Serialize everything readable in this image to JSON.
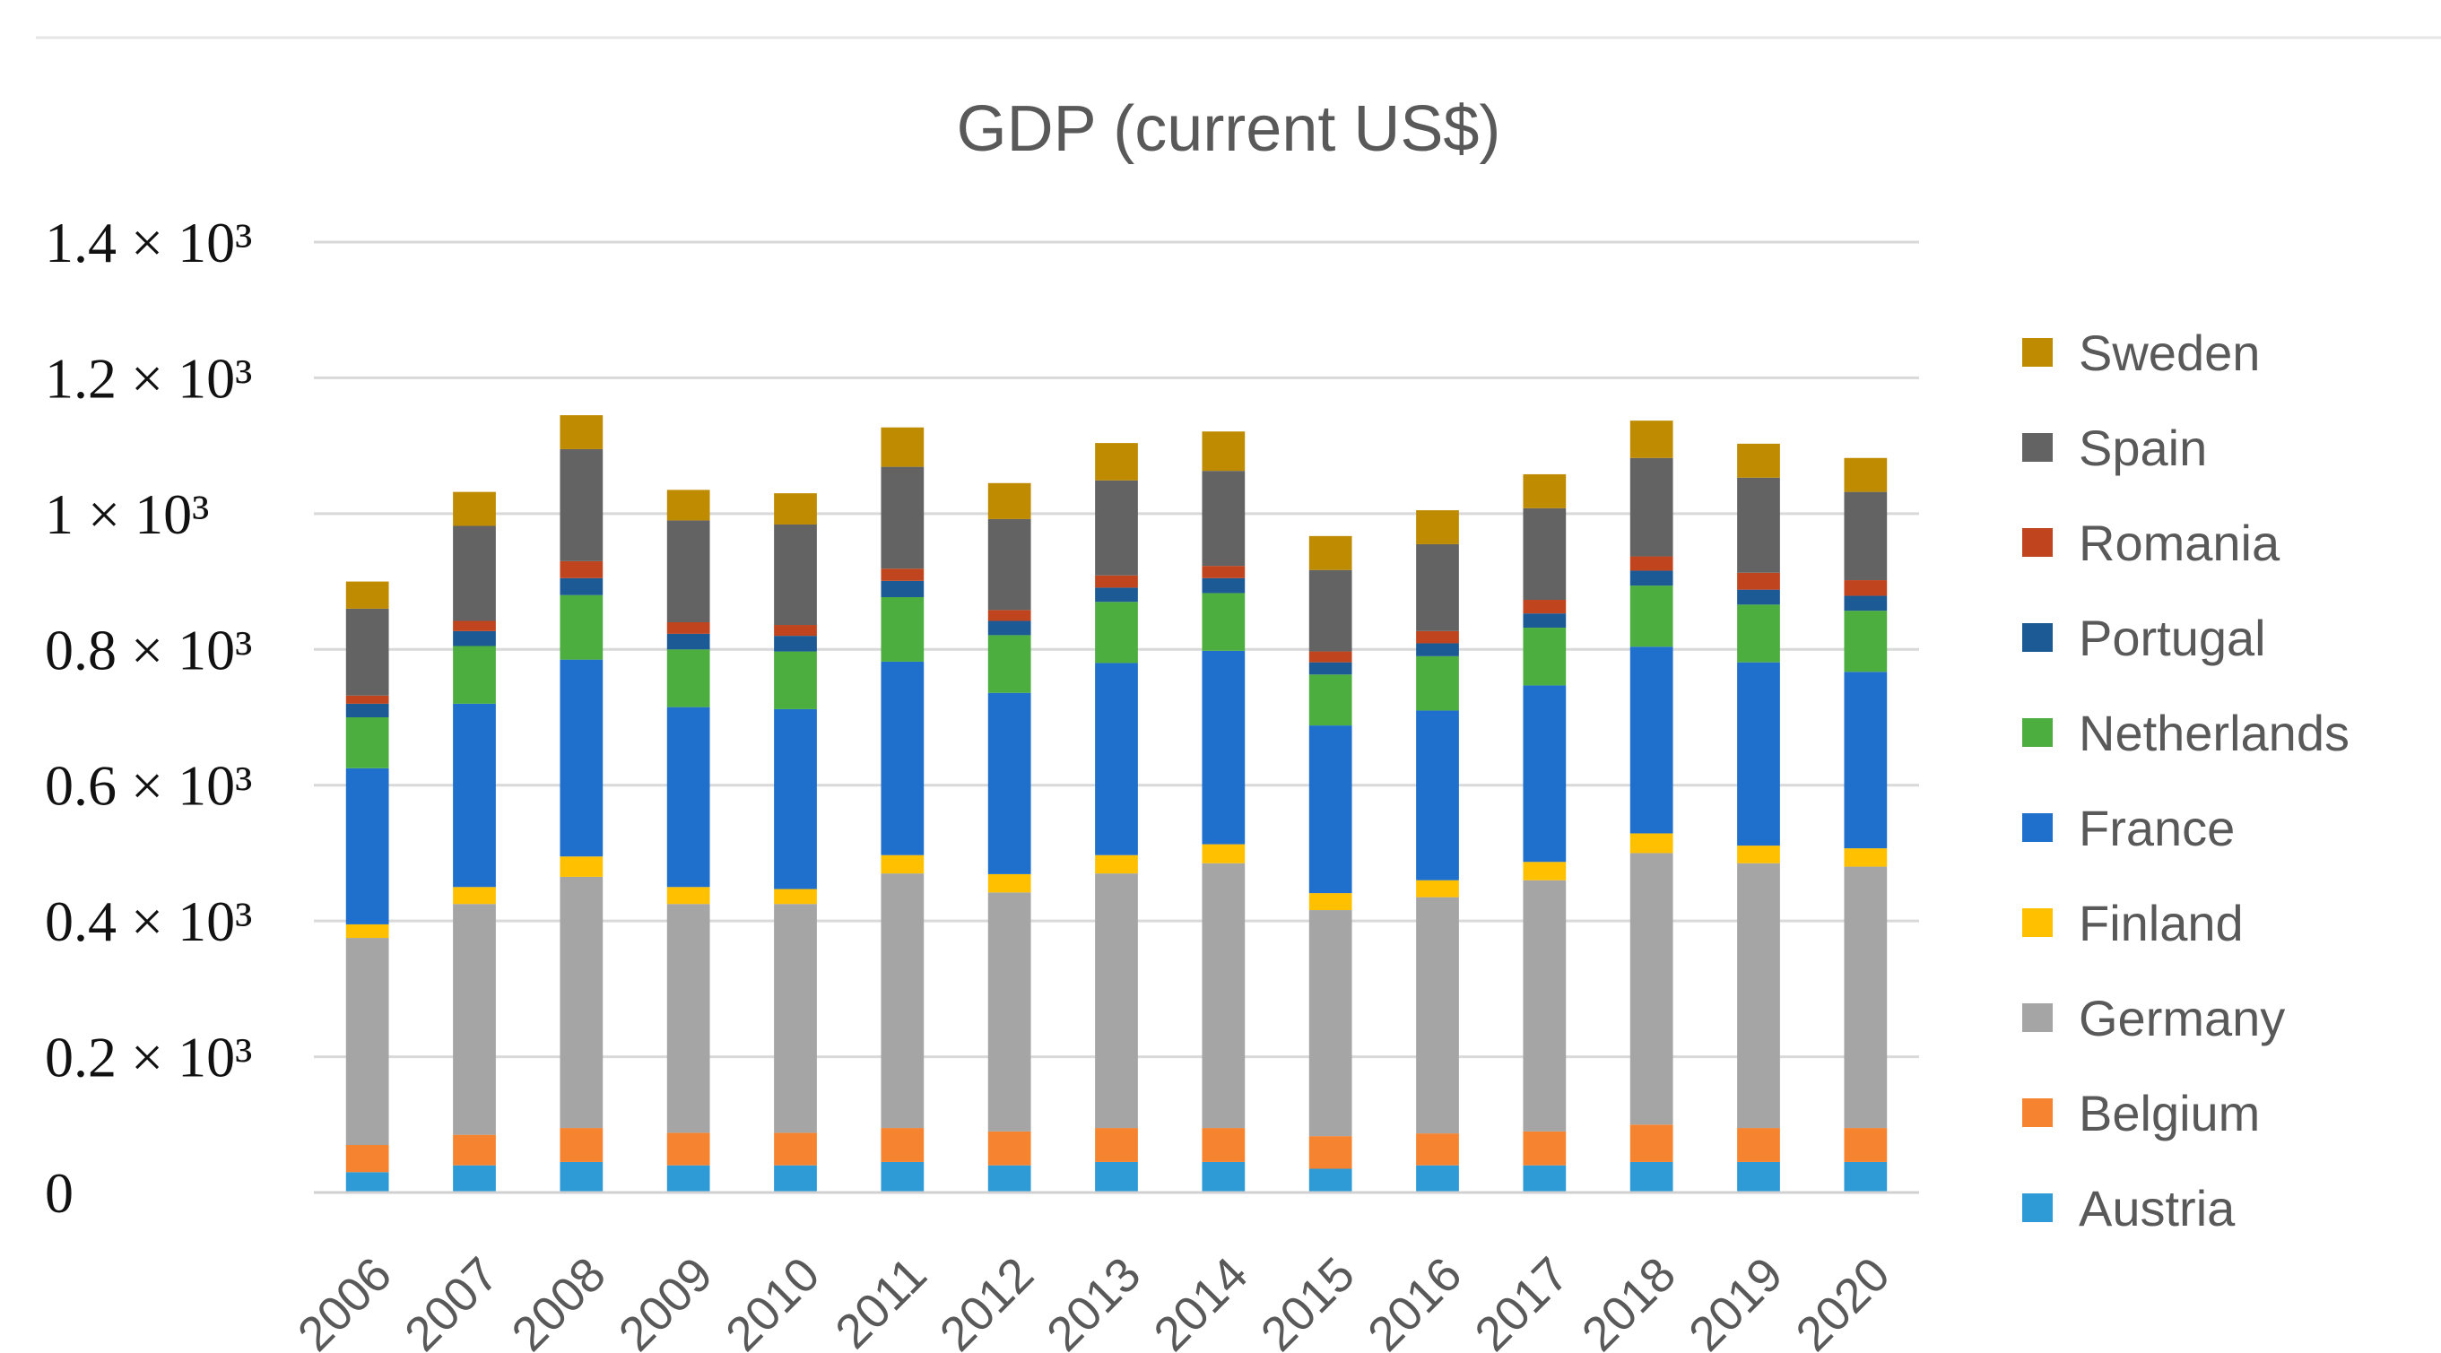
{
  "chart_data": {
    "type": "bar",
    "stacked": true,
    "title": "GDP (current US$)",
    "xlabel": "",
    "ylabel": "",
    "ylim": [
      0,
      1.4
    ],
    "grid": true,
    "legend_position": "right",
    "categories": [
      "2006",
      "2007",
      "2008",
      "2009",
      "2010",
      "2011",
      "2012",
      "2013",
      "2014",
      "2015",
      "2016",
      "2017",
      "2018",
      "2019",
      "2020"
    ],
    "y_ticks": [
      {
        "value": 0,
        "label": "0"
      },
      {
        "value": 0.2,
        "label": "0.2 × 10³"
      },
      {
        "value": 0.4,
        "label": "0.4 × 10³"
      },
      {
        "value": 0.6,
        "label": "0.6 × 10³"
      },
      {
        "value": 0.8,
        "label": "0.8 × 10³"
      },
      {
        "value": 1.0,
        "label": "1 × 10³"
      },
      {
        "value": 1.2,
        "label": "1.2 × 10³"
      },
      {
        "value": 1.4,
        "label": "1.4 × 10³"
      }
    ],
    "series": [
      {
        "name": "Austria",
        "color": "#2e9bd6",
        "values": [
          0.03,
          0.04,
          0.045,
          0.04,
          0.04,
          0.045,
          0.04,
          0.045,
          0.045,
          0.035,
          0.04,
          0.04,
          0.045,
          0.045,
          0.045
        ]
      },
      {
        "name": "Belgium",
        "color": "#f58330",
        "values": [
          0.04,
          0.045,
          0.05,
          0.048,
          0.048,
          0.05,
          0.05,
          0.05,
          0.05,
          0.048,
          0.047,
          0.05,
          0.055,
          0.05,
          0.05
        ]
      },
      {
        "name": "Germany",
        "color": "#a5a5a5",
        "values": [
          0.305,
          0.34,
          0.37,
          0.337,
          0.337,
          0.375,
          0.352,
          0.375,
          0.39,
          0.333,
          0.348,
          0.37,
          0.4,
          0.39,
          0.385
        ]
      },
      {
        "name": "Finland",
        "color": "#ffc000",
        "values": [
          0.02,
          0.025,
          0.03,
          0.025,
          0.022,
          0.027,
          0.027,
          0.027,
          0.028,
          0.025,
          0.025,
          0.027,
          0.029,
          0.026,
          0.027
        ]
      },
      {
        "name": "France",
        "color": "#1f6fcc",
        "values": [
          0.23,
          0.27,
          0.29,
          0.265,
          0.265,
          0.285,
          0.267,
          0.283,
          0.285,
          0.247,
          0.25,
          0.26,
          0.275,
          0.27,
          0.26
        ]
      },
      {
        "name": "Netherlands",
        "color": "#4cae3f",
        "values": [
          0.075,
          0.085,
          0.095,
          0.085,
          0.085,
          0.095,
          0.085,
          0.09,
          0.085,
          0.075,
          0.08,
          0.085,
          0.09,
          0.085,
          0.09
        ]
      },
      {
        "name": "Portugal",
        "color": "#1c5a96",
        "values": [
          0.02,
          0.022,
          0.025,
          0.023,
          0.023,
          0.024,
          0.021,
          0.021,
          0.022,
          0.018,
          0.019,
          0.021,
          0.022,
          0.022,
          0.022
        ]
      },
      {
        "name": "Romania",
        "color": "#c0441d",
        "values": [
          0.012,
          0.015,
          0.025,
          0.017,
          0.016,
          0.018,
          0.016,
          0.018,
          0.018,
          0.016,
          0.018,
          0.02,
          0.021,
          0.025,
          0.023
        ]
      },
      {
        "name": "Spain",
        "color": "#636363",
        "values": [
          0.128,
          0.14,
          0.165,
          0.15,
          0.148,
          0.15,
          0.134,
          0.14,
          0.14,
          0.12,
          0.128,
          0.135,
          0.145,
          0.14,
          0.13
        ]
      },
      {
        "name": "Sweden",
        "color": "#bf8b00",
        "values": [
          0.04,
          0.05,
          0.05,
          0.045,
          0.046,
          0.058,
          0.053,
          0.055,
          0.058,
          0.05,
          0.05,
          0.05,
          0.055,
          0.05,
          0.05
        ]
      }
    ]
  }
}
